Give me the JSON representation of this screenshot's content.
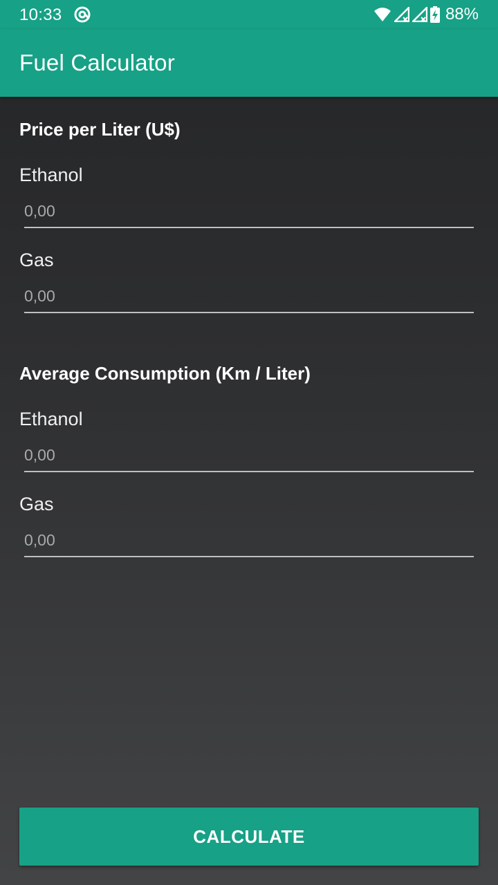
{
  "status_bar": {
    "time": "10:33",
    "battery_percent": "88%",
    "icons": [
      "at-sign-icon",
      "wifi-icon",
      "signal-icon",
      "signal-icon",
      "battery-charging-icon"
    ]
  },
  "app_bar": {
    "title": "Fuel Calculator",
    "color": "#17a186"
  },
  "price_section": {
    "title": "Price per Liter (U$)",
    "ethanol_label": "Ethanol",
    "ethanol_placeholder": "0,00",
    "gas_label": "Gas",
    "gas_placeholder": "0,00"
  },
  "consumption_section": {
    "title": "Average Consumption (Km / Liter)",
    "ethanol_label": "Ethanol",
    "ethanol_placeholder": "0,00",
    "gas_label": "Gas",
    "gas_placeholder": "0,00"
  },
  "calculate_button": {
    "label": "CALCULATE"
  }
}
